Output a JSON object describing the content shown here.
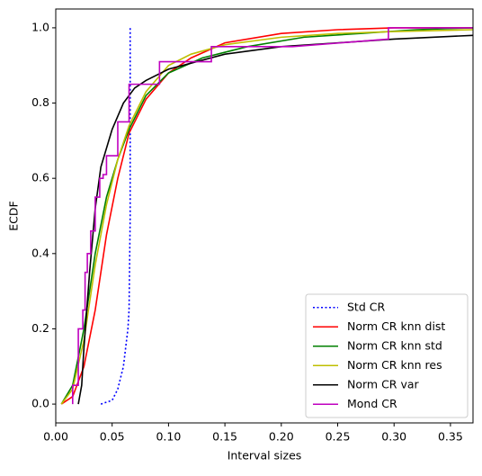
{
  "chart_data": {
    "type": "line",
    "xlabel": "Interval sizes",
    "ylabel": "ECDF",
    "xlim": [
      0,
      0.37
    ],
    "ylim": [
      -0.05,
      1.05
    ],
    "xticks": [
      {
        "value": 0,
        "label": "0.00"
      },
      {
        "value": 0.05,
        "label": "0.05"
      },
      {
        "value": 0.1,
        "label": "0.10"
      },
      {
        "value": 0.15,
        "label": "0.15"
      },
      {
        "value": 0.2,
        "label": "0.20"
      },
      {
        "value": 0.25,
        "label": "0.25"
      },
      {
        "value": 0.3,
        "label": "0.30"
      },
      {
        "value": 0.35,
        "label": "0.35"
      }
    ],
    "yticks": [
      {
        "value": 0,
        "label": "0.0"
      },
      {
        "value": 0.2,
        "label": "0.2"
      },
      {
        "value": 0.4,
        "label": "0.4"
      },
      {
        "value": 0.6,
        "label": "0.6"
      },
      {
        "value": 0.8,
        "label": "0.8"
      },
      {
        "value": 1,
        "label": "1.0"
      }
    ],
    "legend": "lower right",
    "series": [
      {
        "name": "Std CR",
        "color": "#0000ff",
        "dash": "dotted",
        "x": [
          0.04,
          0.05,
          0.055,
          0.06,
          0.064,
          0.065,
          0.066,
          0.066
        ],
        "values": [
          0,
          0.01,
          0.04,
          0.1,
          0.2,
          0.25,
          0.5,
          1.0
        ]
      },
      {
        "name": "Norm CR knn dist",
        "color": "#ff0000",
        "x": [
          0.005,
          0.015,
          0.025,
          0.035,
          0.045,
          0.055,
          0.065,
          0.08,
          0.1,
          0.12,
          0.15,
          0.2,
          0.25,
          0.3,
          0.37
        ],
        "values": [
          0,
          0.02,
          0.1,
          0.25,
          0.45,
          0.6,
          0.72,
          0.81,
          0.88,
          0.92,
          0.96,
          0.985,
          0.995,
          1.0,
          1.0
        ]
      },
      {
        "name": "Norm CR knn std",
        "color": "#008000",
        "x": [
          0.005,
          0.015,
          0.025,
          0.035,
          0.045,
          0.055,
          0.065,
          0.08,
          0.1,
          0.13,
          0.17,
          0.22,
          0.27,
          0.32,
          0.37
        ],
        "values": [
          0,
          0.05,
          0.2,
          0.4,
          0.55,
          0.65,
          0.73,
          0.82,
          0.88,
          0.92,
          0.95,
          0.975,
          0.985,
          0.995,
          1.0
        ]
      },
      {
        "name": "Norm CR knn res",
        "color": "#bfbf00",
        "x": [
          0.005,
          0.015,
          0.025,
          0.035,
          0.045,
          0.055,
          0.065,
          0.08,
          0.1,
          0.12,
          0.15,
          0.2,
          0.25,
          0.3,
          0.37
        ],
        "values": [
          0,
          0.04,
          0.17,
          0.37,
          0.53,
          0.65,
          0.74,
          0.83,
          0.9,
          0.93,
          0.955,
          0.975,
          0.985,
          0.99,
          0.995
        ]
      },
      {
        "name": "Norm CR var",
        "color": "#000000",
        "x": [
          0.02,
          0.023,
          0.025,
          0.03,
          0.035,
          0.04,
          0.05,
          0.06,
          0.07,
          0.08,
          0.1,
          0.15,
          0.2,
          0.25,
          0.3,
          0.37
        ],
        "values": [
          0,
          0.05,
          0.15,
          0.35,
          0.52,
          0.63,
          0.73,
          0.8,
          0.84,
          0.86,
          0.89,
          0.93,
          0.95,
          0.96,
          0.97,
          0.98
        ]
      },
      {
        "name": "Mond CR",
        "color": "#bf00bf",
        "x": [
          0.015,
          0.015,
          0.02,
          0.02,
          0.024,
          0.024,
          0.026,
          0.026,
          0.028,
          0.028,
          0.031,
          0.031,
          0.035,
          0.035,
          0.039,
          0.039,
          0.042,
          0.042,
          0.045,
          0.045,
          0.055,
          0.055,
          0.065,
          0.065,
          0.092,
          0.092,
          0.138,
          0.138,
          0.21,
          0.295,
          0.295,
          0.37
        ],
        "values": [
          0,
          0.05,
          0.05,
          0.2,
          0.2,
          0.25,
          0.25,
          0.35,
          0.35,
          0.4,
          0.4,
          0.46,
          0.46,
          0.55,
          0.55,
          0.6,
          0.6,
          0.61,
          0.61,
          0.66,
          0.66,
          0.75,
          0.75,
          0.85,
          0.85,
          0.91,
          0.91,
          0.95,
          0.95,
          0.97,
          1.0,
          1.0
        ]
      }
    ]
  }
}
